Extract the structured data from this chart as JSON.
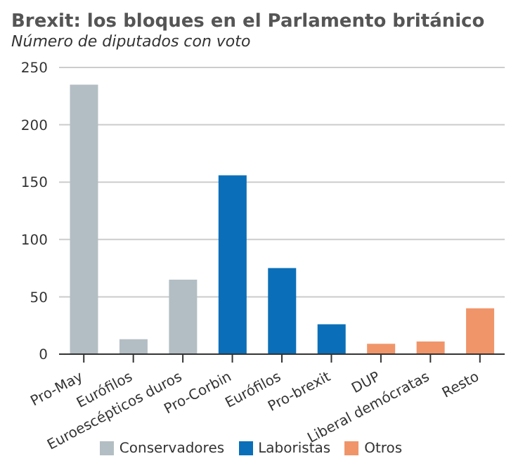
{
  "chart_data": {
    "type": "bar",
    "title": "Brexit: los bloques en el Parlamento británico",
    "subtitle": "Número de diputados con voto",
    "categories": [
      "Pro-May",
      "Eurófilos",
      "Euroescépticos duros",
      "Pro-Corbin",
      "Eurófilos",
      "Pro-brexit",
      "DUP",
      "Liberal demócratas",
      "Resto"
    ],
    "series": [
      {
        "name": "Conservadores",
        "color": "#b3bec4",
        "values": [
          235,
          13,
          65,
          null,
          null,
          null,
          null,
          null,
          null
        ]
      },
      {
        "name": "Laboristas",
        "color": "#0a6fb8",
        "values": [
          null,
          null,
          null,
          156,
          75,
          26,
          null,
          null,
          null
        ]
      },
      {
        "name": "Otros",
        "color": "#f0956a",
        "values": [
          null,
          null,
          null,
          null,
          null,
          null,
          9,
          11,
          40
        ]
      }
    ],
    "stacked": true,
    "ylim": [
      0,
      250
    ],
    "yticks": [
      0,
      50,
      100,
      150,
      200,
      250
    ],
    "grid": "y",
    "legend": "bottom"
  }
}
